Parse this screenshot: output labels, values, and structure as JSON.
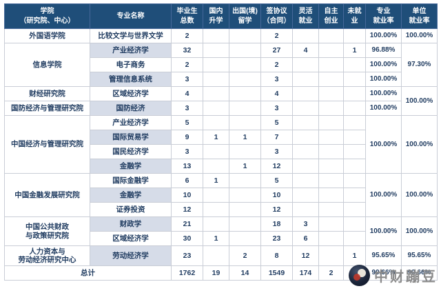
{
  "colors": {
    "header_bg": "#1F4E79",
    "shaded_row": "#D6DCE8",
    "text": "#1E3A5F",
    "border": "#C9CDD6"
  },
  "table": {
    "columns": [
      "学院\n（研究院、中心）",
      "专业名称",
      "毕业生\n总数",
      "国内\n升学",
      "出国(境)\n留学",
      "签协议\n（合同）",
      "灵活\n就业",
      "自主\n创业",
      "未就\n业",
      "专业\n就业率",
      "单位\n就业率"
    ],
    "college_cells": [
      {
        "name": "外国语学院",
        "start": 0,
        "span": 1
      },
      {
        "name": "信息学院",
        "start": 1,
        "span": 3
      },
      {
        "name": "财经研究院",
        "start": 4,
        "span": 1
      },
      {
        "name": "国防经济与管理研究院",
        "start": 5,
        "span": 1
      },
      {
        "name": "中国经济与管理研究院",
        "start": 6,
        "span": 4
      },
      {
        "name": "中国金融发展研究院",
        "start": 10,
        "span": 3
      },
      {
        "name": "中国公共财政\n与政策研究院",
        "start": 13,
        "span": 2
      },
      {
        "name": "人力资本与\n劳动经济研究中心",
        "start": 15,
        "span": 1
      }
    ],
    "rows": [
      {
        "major": "比较文学与世界文学",
        "shaded": false,
        "values": [
          "2",
          "",
          "",
          "2",
          "",
          "",
          ""
        ]
      },
      {
        "major": "产业经济学",
        "shaded": true,
        "values": [
          "32",
          "",
          "",
          "27",
          "4",
          "",
          "1"
        ]
      },
      {
        "major": "电子商务",
        "shaded": false,
        "values": [
          "2",
          "",
          "",
          "2",
          "",
          "",
          ""
        ]
      },
      {
        "major": "管理信息系统",
        "shaded": true,
        "values": [
          "3",
          "",
          "",
          "3",
          "",
          "",
          ""
        ]
      },
      {
        "major": "区域经济学",
        "shaded": false,
        "values": [
          "4",
          "",
          "",
          "4",
          "",
          "",
          ""
        ]
      },
      {
        "major": "国防经济",
        "shaded": true,
        "values": [
          "3",
          "",
          "",
          "3",
          "",
          "",
          ""
        ]
      },
      {
        "major": "产业经济学",
        "shaded": false,
        "values": [
          "5",
          "",
          "",
          "5",
          "",
          "",
          ""
        ]
      },
      {
        "major": "国际贸易学",
        "shaded": true,
        "values": [
          "9",
          "1",
          "1",
          "7",
          "",
          "",
          ""
        ]
      },
      {
        "major": "国民经济学",
        "shaded": false,
        "values": [
          "3",
          "",
          "",
          "3",
          "",
          "",
          ""
        ]
      },
      {
        "major": "金融学",
        "shaded": true,
        "values": [
          "13",
          "",
          "1",
          "12",
          "",
          "",
          ""
        ]
      },
      {
        "major": "国际金融学",
        "shaded": false,
        "values": [
          "6",
          "1",
          "",
          "5",
          "",
          "",
          ""
        ]
      },
      {
        "major": "金融学",
        "shaded": true,
        "values": [
          "10",
          "",
          "",
          "10",
          "",
          "",
          ""
        ]
      },
      {
        "major": "证券投资",
        "shaded": false,
        "values": [
          "12",
          "",
          "",
          "12",
          "",
          "",
          ""
        ]
      },
      {
        "major": "财政学",
        "shaded": true,
        "values": [
          "21",
          "",
          "",
          "18",
          "3",
          "",
          ""
        ]
      },
      {
        "major": "区域经济学",
        "shaded": false,
        "values": [
          "30",
          "1",
          "",
          "23",
          "6",
          "",
          ""
        ]
      },
      {
        "major": "劳动经济学",
        "shaded": true,
        "tall": true,
        "values": [
          "23",
          "",
          "2",
          "8",
          "12",
          "",
          "1"
        ]
      }
    ],
    "major_rate_cells": [
      {
        "start": 0,
        "span": 1,
        "value": "100.00%"
      },
      {
        "start": 1,
        "span": 1,
        "value": "96.88%"
      },
      {
        "start": 2,
        "span": 1,
        "value": "100.00%"
      },
      {
        "start": 3,
        "span": 1,
        "value": "100.00%"
      },
      {
        "start": 4,
        "span": 1,
        "value": "100.00%"
      },
      {
        "start": 5,
        "span": 1,
        "value": "100.00%"
      },
      {
        "start": 6,
        "span": 4,
        "value": "100.00%"
      },
      {
        "start": 10,
        "span": 3,
        "value": "100.00%"
      },
      {
        "start": 13,
        "span": 2,
        "value": "100.00%"
      },
      {
        "start": 15,
        "span": 1,
        "value": "95.65%"
      }
    ],
    "unit_rate_cells": [
      {
        "start": 0,
        "span": 1,
        "value": "100.00%"
      },
      {
        "start": 1,
        "span": 3,
        "value": "97.30%"
      },
      {
        "start": 4,
        "span": 2,
        "value": "100.00%"
      },
      {
        "start": 6,
        "span": 4,
        "value": "100.00%"
      },
      {
        "start": 10,
        "span": 3,
        "value": "100.00%"
      },
      {
        "start": 13,
        "span": 2,
        "value": "100.00%"
      },
      {
        "start": 15,
        "span": 1,
        "value": "95.65%"
      }
    ],
    "total_row": {
      "label": "总计",
      "values": [
        "1762",
        "19",
        "14",
        "1549",
        "174",
        "2",
        "6"
      ],
      "major_rate": "99.66%",
      "unit_rate": "99.66%"
    }
  },
  "watermark": {
    "text": "中财蹦豆"
  }
}
